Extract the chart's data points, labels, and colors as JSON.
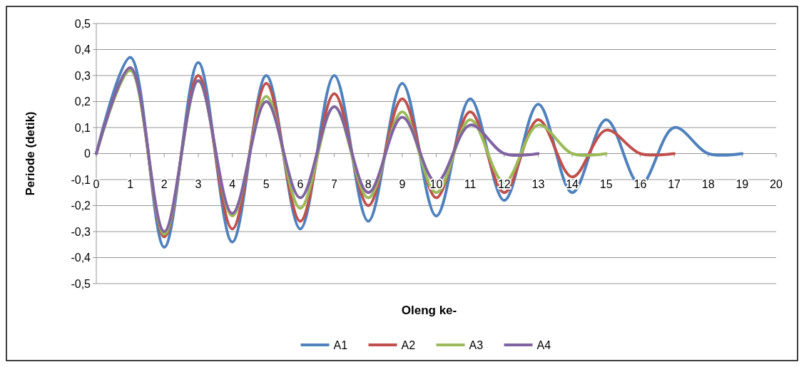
{
  "chart_data": {
    "type": "line",
    "xlabel": "Oleng ke-",
    "ylabel": "Periode (detik)",
    "xlim": [
      0,
      20
    ],
    "xticks": [
      0,
      1,
      2,
      3,
      4,
      5,
      6,
      7,
      8,
      9,
      10,
      11,
      12,
      13,
      14,
      15,
      16,
      17,
      18,
      19,
      20
    ],
    "ylim": [
      -0.5,
      0.5
    ],
    "yticks": [
      {
        "value": -0.5,
        "label": "-0,5"
      },
      {
        "value": -0.4,
        "label": "-0,4"
      },
      {
        "value": -0.3,
        "label": "-0,3"
      },
      {
        "value": -0.2,
        "label": "-0,2"
      },
      {
        "value": -0.1,
        "label": "-0,1"
      },
      0,
      {
        "value": 0.1,
        "label": "0,1"
      },
      {
        "value": 0.2,
        "label": "0,2"
      },
      {
        "value": 0.3,
        "label": "0,3"
      },
      {
        "value": 0.4,
        "label": "0,4"
      },
      {
        "value": 0.5,
        "label": "0,5"
      }
    ],
    "grid": "y",
    "legend": "bottom",
    "marker": "none",
    "line_style": "solid",
    "series": [
      {
        "name": "A1",
        "color": "#4f81bd",
        "x": [
          0,
          1,
          2,
          3,
          4,
          5,
          6,
          7,
          8,
          9,
          10,
          11,
          12,
          13,
          14,
          15,
          16,
          17,
          18,
          19
        ],
        "values": [
          0,
          0.37,
          -0.36,
          0.35,
          -0.34,
          0.3,
          -0.29,
          0.3,
          -0.26,
          0.27,
          -0.24,
          0.21,
          -0.18,
          0.19,
          -0.15,
          0.13,
          -0.12,
          0.1,
          0,
          0
        ]
      },
      {
        "name": "A2",
        "color": "#c0504d",
        "x": [
          0,
          1,
          2,
          3,
          4,
          5,
          6,
          7,
          8,
          9,
          10,
          11,
          12,
          13,
          14,
          15,
          16,
          17
        ],
        "values": [
          0,
          0.33,
          -0.32,
          0.3,
          -0.29,
          0.27,
          -0.26,
          0.23,
          -0.2,
          0.21,
          -0.17,
          0.16,
          -0.15,
          0.13,
          -0.09,
          0.09,
          0,
          0
        ]
      },
      {
        "name": "A3",
        "color": "#9bbb59",
        "x": [
          0,
          1,
          2,
          3,
          4,
          5,
          6,
          7,
          8,
          9,
          10,
          11,
          12,
          13,
          14,
          15
        ],
        "values": [
          0,
          0.32,
          -0.31,
          0.28,
          -0.24,
          0.22,
          -0.21,
          0.18,
          -0.17,
          0.16,
          -0.15,
          0.13,
          -0.11,
          0.11,
          0,
          0
        ]
      },
      {
        "name": "A4",
        "color": "#8064a2",
        "x": [
          0,
          1,
          2,
          3,
          4,
          5,
          6,
          7,
          8,
          9,
          10,
          11,
          12,
          13
        ],
        "values": [
          0,
          0.33,
          -0.3,
          0.28,
          -0.23,
          0.2,
          -0.17,
          0.18,
          -0.15,
          0.14,
          -0.11,
          0.11,
          0,
          0
        ]
      }
    ]
  }
}
